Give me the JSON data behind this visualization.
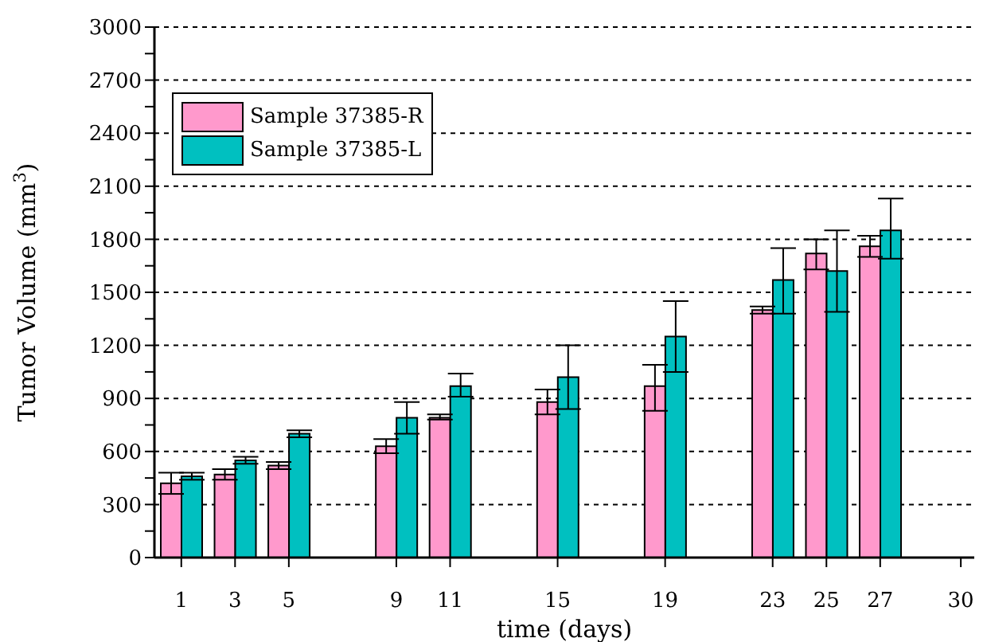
{
  "chart_data": {
    "type": "bar",
    "xlabel": "time (days)",
    "ylabel": "Tumor Volume (mm$^{3}$)",
    "x": [
      1,
      3,
      5,
      9,
      11,
      15,
      19,
      23,
      25,
      27
    ],
    "series": [
      {
        "name": "Sample 37385-R",
        "color": "#ff99cc",
        "values": [
          420,
          470,
          520,
          630,
          790,
          880,
          970,
          1400,
          1720,
          1760
        ],
        "errors": [
          [
            360,
            480
          ],
          [
            440,
            500
          ],
          [
            500,
            540
          ],
          [
            590,
            670
          ],
          [
            780,
            810
          ],
          [
            810,
            950
          ],
          [
            830,
            1090
          ],
          [
            1380,
            1420
          ],
          [
            1630,
            1800
          ],
          [
            1700,
            1820
          ]
        ]
      },
      {
        "name": "Sample 37385-L",
        "color": "#00c0c0",
        "values": [
          460,
          550,
          700,
          790,
          970,
          1020,
          1250,
          1570,
          1620,
          1850
        ],
        "errors": [
          [
            440,
            480
          ],
          [
            530,
            570
          ],
          [
            680,
            720
          ],
          [
            700,
            880
          ],
          [
            910,
            1040
          ],
          [
            840,
            1200
          ],
          [
            1050,
            1450
          ],
          [
            1380,
            1750
          ],
          [
            1390,
            1850
          ],
          [
            1690,
            2030
          ]
        ]
      }
    ],
    "xlim": [
      0,
      30.5
    ],
    "xticks": [
      1,
      3,
      5,
      9,
      11,
      15,
      19,
      23,
      25,
      27,
      30
    ],
    "ylim": [
      0,
      3000
    ],
    "yticks": [
      0,
      {
        "value": 150,
        "label": null
      },
      300,
      {
        "value": 450,
        "label": null
      },
      600,
      {
        "value": 750,
        "label": null
      },
      900,
      {
        "value": 1050,
        "label": null
      },
      1200,
      {
        "value": 1350,
        "label": null
      },
      1500,
      {
        "value": 1650,
        "label": null
      },
      1800,
      {
        "value": 1950,
        "label": null
      },
      2100,
      {
        "value": 2250,
        "label": null
      },
      2400,
      {
        "value": 2550,
        "label": null
      },
      2700,
      {
        "value": 2850,
        "label": null
      },
      3000
    ],
    "grid": "y",
    "legend": "top left"
  }
}
